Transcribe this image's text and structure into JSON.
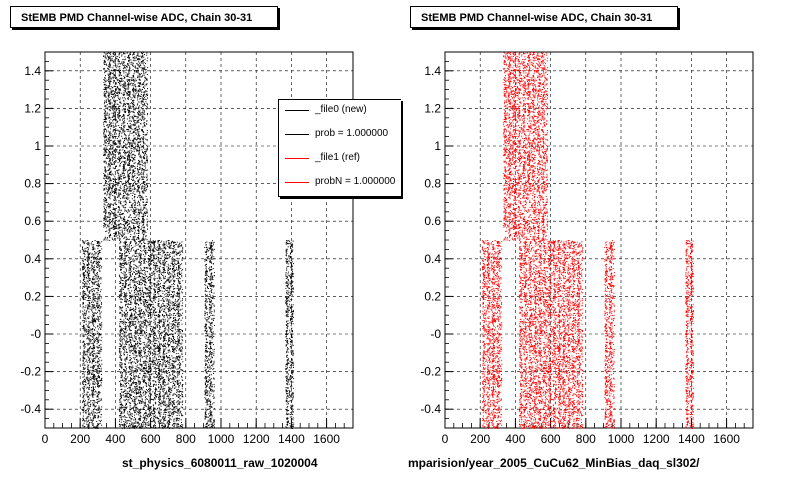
{
  "colors": {
    "new": "#000000",
    "ref": "#ff0000"
  },
  "corner_text": "",
  "chart_data": [
    {
      "type": "scatter",
      "title": "StEMB PMD Channel-wise ADC, Chain 30-31",
      "xlabel": "st_physics_6080011_raw_1020004",
      "ylabel": "",
      "xlim": [
        0,
        1750
      ],
      "ylim": [
        -0.5,
        1.5
      ],
      "xticks": [
        "0",
        "200",
        "400",
        "600",
        "800",
        "1000",
        "1200",
        "1400",
        "1600"
      ],
      "yticks": [
        "-0.4",
        "-0.2",
        "-0",
        "0.2",
        "0.4",
        "0.6",
        "0.8",
        "1",
        "1.2",
        "1.4"
      ],
      "grid": true,
      "legend_position": "top-right",
      "legend": [
        "_file0 (new)",
        "prob = 1.000000",
        "_file1 (ref)",
        "probN = 1.000000"
      ],
      "series": [
        {
          "name": "_file0 (new)",
          "color": "#000000",
          "bands": [
            {
              "x": [
                210,
                320
              ],
              "y": [
                -0.5,
                0.5
              ]
            },
            {
              "x": [
                330,
                580
              ],
              "y": [
                0.5,
                1.5
              ]
            },
            {
              "x": [
                420,
                780
              ],
              "y": [
                -0.5,
                0.5
              ]
            },
            {
              "x": [
                905,
                960
              ],
              "y": [
                -0.5,
                0.5
              ]
            },
            {
              "x": [
                1365,
                1410
              ],
              "y": [
                -0.5,
                0.5
              ]
            }
          ]
        }
      ]
    },
    {
      "type": "scatter",
      "title": "StEMB PMD Channel-wise ADC, Chain 30-31",
      "xlabel": "mparision/year_2005_CuCu62_MinBias_daq_sl302/",
      "ylabel": "",
      "xlim": [
        0,
        1750
      ],
      "ylim": [
        -0.5,
        1.5
      ],
      "xticks": [
        "0",
        "200",
        "400",
        "600",
        "800",
        "1000",
        "1200",
        "1400",
        "1600"
      ],
      "yticks": [
        "-0.4",
        "-0.2",
        "-0",
        "0.2",
        "0.4",
        "0.6",
        "0.8",
        "1",
        "1.2",
        "1.4"
      ],
      "grid": true,
      "series": [
        {
          "name": "_file1 (ref)",
          "color": "#ff0000",
          "bands": [
            {
              "x": [
                210,
                320
              ],
              "y": [
                -0.5,
                0.5
              ]
            },
            {
              "x": [
                330,
                580
              ],
              "y": [
                0.5,
                1.5
              ]
            },
            {
              "x": [
                420,
                780
              ],
              "y": [
                -0.5,
                0.5
              ]
            },
            {
              "x": [
                905,
                960
              ],
              "y": [
                -0.5,
                0.5
              ]
            },
            {
              "x": [
                1365,
                1410
              ],
              "y": [
                -0.5,
                0.5
              ]
            }
          ]
        }
      ]
    }
  ]
}
